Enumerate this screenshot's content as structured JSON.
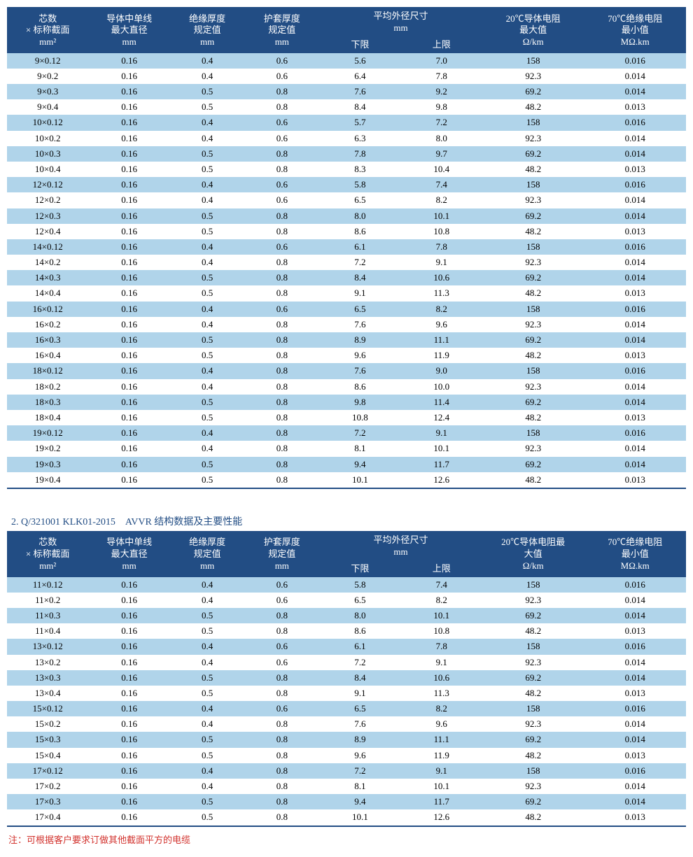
{
  "colors": {
    "header_bg": "#224d84",
    "header_text": "#ffffff",
    "row_alt_bg": "#b0d4ea",
    "row_bg": "#ffffff",
    "border": "#224d84",
    "footnote": "#d2322d"
  },
  "headers": {
    "c0_l1": "芯数",
    "c0_l2": "× 标称截面",
    "c0_l3": "mm²",
    "c1_l1": "导体中单线",
    "c1_l2": "最大直径",
    "c1_l3": "mm",
    "c2_l1": "绝缘厚度",
    "c2_l2": "规定值",
    "c2_l3": "mm",
    "c3_l1": "护套厚度",
    "c3_l2": "规定值",
    "c3_l3": "mm",
    "c4_l1": "平均外径尺寸",
    "c4_l2": "mm",
    "c4_l3a": "下限",
    "c4_l3b": "上限",
    "c5_l1": "20℃导体电阻",
    "c5_l2": "最大值",
    "c5_l3": "Ω/km",
    "c6_l1": "70℃绝缘电阻",
    "c6_l2": "最小值",
    "c6_l3": "MΩ.km",
    "c5b_l1": "20℃导体电阻最",
    "c5b_l2": "大值"
  },
  "table1": {
    "rows": [
      [
        "9×0.12",
        "0.16",
        "0.4",
        "0.6",
        "5.6",
        "7.0",
        "158",
        "0.016"
      ],
      [
        "9×0.2",
        "0.16",
        "0.4",
        "0.6",
        "6.4",
        "7.8",
        "92.3",
        "0.014"
      ],
      [
        "9×0.3",
        "0.16",
        "0.5",
        "0.8",
        "7.6",
        "9.2",
        "69.2",
        "0.014"
      ],
      [
        "9×0.4",
        "0.16",
        "0.5",
        "0.8",
        "8.4",
        "9.8",
        "48.2",
        "0.013"
      ],
      [
        "10×0.12",
        "0.16",
        "0.4",
        "0.6",
        "5.7",
        "7.2",
        "158",
        "0.016"
      ],
      [
        "10×0.2",
        "0.16",
        "0.4",
        "0.6",
        "6.3",
        "8.0",
        "92.3",
        "0.014"
      ],
      [
        "10×0.3",
        "0.16",
        "0.5",
        "0.8",
        "7.8",
        "9.7",
        "69.2",
        "0.014"
      ],
      [
        "10×0.4",
        "0.16",
        "0.5",
        "0.8",
        "8.3",
        "10.4",
        "48.2",
        "0.013"
      ],
      [
        "12×0.12",
        "0.16",
        "0.4",
        "0.6",
        "5.8",
        "7.4",
        "158",
        "0.016"
      ],
      [
        "12×0.2",
        "0.16",
        "0.4",
        "0.6",
        "6.5",
        "8.2",
        "92.3",
        "0.014"
      ],
      [
        "12×0.3",
        "0.16",
        "0.5",
        "0.8",
        "8.0",
        "10.1",
        "69.2",
        "0.014"
      ],
      [
        "12×0.4",
        "0.16",
        "0.5",
        "0.8",
        "8.6",
        "10.8",
        "48.2",
        "0.013"
      ],
      [
        "14×0.12",
        "0.16",
        "0.4",
        "0.6",
        "6.1",
        "7.8",
        "158",
        "0.016"
      ],
      [
        "14×0.2",
        "0.16",
        "0.4",
        "0.8",
        "7.2",
        "9.1",
        "92.3",
        "0.014"
      ],
      [
        "14×0.3",
        "0.16",
        "0.5",
        "0.8",
        "8.4",
        "10.6",
        "69.2",
        "0.014"
      ],
      [
        "14×0.4",
        "0.16",
        "0.5",
        "0.8",
        "9.1",
        "11.3",
        "48.2",
        "0.013"
      ],
      [
        "16×0.12",
        "0.16",
        "0.4",
        "0.6",
        "6.5",
        "8.2",
        "158",
        "0.016"
      ],
      [
        "16×0.2",
        "0.16",
        "0.4",
        "0.8",
        "7.6",
        "9.6",
        "92.3",
        "0.014"
      ],
      [
        "16×0.3",
        "0.16",
        "0.5",
        "0.8",
        "8.9",
        "11.1",
        "69.2",
        "0.014"
      ],
      [
        "16×0.4",
        "0.16",
        "0.5",
        "0.8",
        "9.6",
        "11.9",
        "48.2",
        "0.013"
      ],
      [
        "18×0.12",
        "0.16",
        "0.4",
        "0.8",
        "7.6",
        "9.0",
        "158",
        "0.016"
      ],
      [
        "18×0.2",
        "0.16",
        "0.4",
        "0.8",
        "8.6",
        "10.0",
        "92.3",
        "0.014"
      ],
      [
        "18×0.3",
        "0.16",
        "0.5",
        "0.8",
        "9.8",
        "11.4",
        "69.2",
        "0.014"
      ],
      [
        "18×0.4",
        "0.16",
        "0.5",
        "0.8",
        "10.8",
        "12.4",
        "48.2",
        "0.013"
      ],
      [
        "19×0.12",
        "0.16",
        "0.4",
        "0.8",
        "7.2",
        "9.1",
        "158",
        "0.016"
      ],
      [
        "19×0.2",
        "0.16",
        "0.4",
        "0.8",
        "8.1",
        "10.1",
        "92.3",
        "0.014"
      ],
      [
        "19×0.3",
        "0.16",
        "0.5",
        "0.8",
        "9.4",
        "11.7",
        "69.2",
        "0.014"
      ],
      [
        "19×0.4",
        "0.16",
        "0.5",
        "0.8",
        "10.1",
        "12.6",
        "48.2",
        "0.013"
      ]
    ]
  },
  "section2_title": "2. Q/321001 KLK01-2015　AVVR 结构数据及主要性能",
  "table2": {
    "rows": [
      [
        "11×0.12",
        "0.16",
        "0.4",
        "0.6",
        "5.8",
        "7.4",
        "158",
        "0.016"
      ],
      [
        "11×0.2",
        "0.16",
        "0.4",
        "0.6",
        "6.5",
        "8.2",
        "92.3",
        "0.014"
      ],
      [
        "11×0.3",
        "0.16",
        "0.5",
        "0.8",
        "8.0",
        "10.1",
        "69.2",
        "0.014"
      ],
      [
        "11×0.4",
        "0.16",
        "0.5",
        "0.8",
        "8.6",
        "10.8",
        "48.2",
        "0.013"
      ],
      [
        "13×0.12",
        "0.16",
        "0.4",
        "0.6",
        "6.1",
        "7.8",
        "158",
        "0.016"
      ],
      [
        "13×0.2",
        "0.16",
        "0.4",
        "0.6",
        "7.2",
        "9.1",
        "92.3",
        "0.014"
      ],
      [
        "13×0.3",
        "0.16",
        "0.5",
        "0.8",
        "8.4",
        "10.6",
        "69.2",
        "0.014"
      ],
      [
        "13×0.4",
        "0.16",
        "0.5",
        "0.8",
        "9.1",
        "11.3",
        "48.2",
        "0.013"
      ],
      [
        "15×0.12",
        "0.16",
        "0.4",
        "0.6",
        "6.5",
        "8.2",
        "158",
        "0.016"
      ],
      [
        "15×0.2",
        "0.16",
        "0.4",
        "0.8",
        "7.6",
        "9.6",
        "92.3",
        "0.014"
      ],
      [
        "15×0.3",
        "0.16",
        "0.5",
        "0.8",
        "8.9",
        "11.1",
        "69.2",
        "0.014"
      ],
      [
        "15×0.4",
        "0.16",
        "0.5",
        "0.8",
        "9.6",
        "11.9",
        "48.2",
        "0.013"
      ],
      [
        "17×0.12",
        "0.16",
        "0.4",
        "0.8",
        "7.2",
        "9.1",
        "158",
        "0.016"
      ],
      [
        "17×0.2",
        "0.16",
        "0.4",
        "0.8",
        "8.1",
        "10.1",
        "92.3",
        "0.014"
      ],
      [
        "17×0.3",
        "0.16",
        "0.5",
        "0.8",
        "9.4",
        "11.7",
        "69.2",
        "0.014"
      ],
      [
        "17×0.4",
        "0.16",
        "0.5",
        "0.8",
        "10.1",
        "12.6",
        "48.2",
        "0.013"
      ]
    ]
  },
  "footnote": "注：可根据客户要求订做其他截面平方的电缆",
  "col_widths": [
    "12%",
    "12%",
    "11%",
    "11%",
    "12%",
    "12%",
    "15%",
    "15%"
  ]
}
